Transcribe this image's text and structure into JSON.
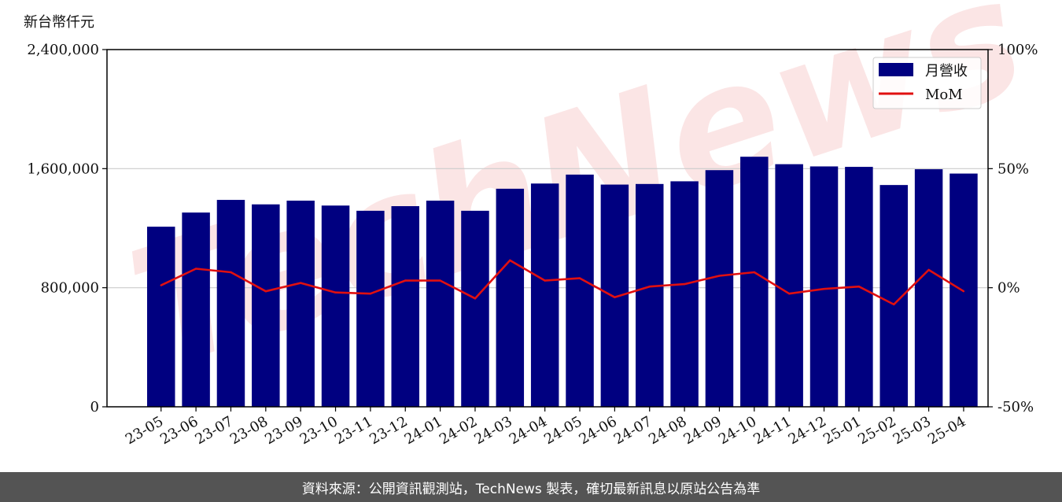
{
  "colors": {
    "bar": "#000080",
    "line": "#e01010",
    "grid": "#cccccc",
    "watermark": "#f7d0d0",
    "footer_bg": "#545454"
  },
  "chart_data": {
    "type": "bar",
    "unit_label": "新台幣仟元",
    "categories": [
      "23-05",
      "23-06",
      "23-07",
      "23-08",
      "23-09",
      "23-10",
      "23-11",
      "23-12",
      "24-01",
      "24-02",
      "24-03",
      "24-04",
      "24-05",
      "24-06",
      "24-07",
      "24-08",
      "24-09",
      "24-10",
      "24-11",
      "24-12",
      "25-01",
      "25-02",
      "25-03",
      "25-04"
    ],
    "series": [
      {
        "name": "月營收",
        "type": "bar",
        "axis": "left",
        "values": [
          1210000,
          1305000,
          1390000,
          1360000,
          1385000,
          1352000,
          1317000,
          1348000,
          1385000,
          1317000,
          1465000,
          1500000,
          1560000,
          1493000,
          1497000,
          1515000,
          1590000,
          1680000,
          1630000,
          1615000,
          1612000,
          1490000,
          1596000,
          1567000
        ]
      },
      {
        "name": "MoM",
        "type": "line",
        "axis": "right",
        "values": [
          1.0,
          8.0,
          6.5,
          -1.5,
          2.0,
          -2.0,
          -2.5,
          3.0,
          3.0,
          -4.5,
          11.5,
          3.0,
          4.0,
          -4.0,
          0.5,
          1.5,
          5.0,
          6.5,
          -2.5,
          -0.5,
          0.5,
          -7.0,
          7.5,
          -1.5
        ]
      }
    ],
    "y_left": {
      "ylim": [
        0,
        2400000
      ],
      "ticks": [
        "0",
        "800,000",
        "1,600,000",
        "2,400,000"
      ],
      "tick_values": [
        0,
        800000,
        1600000,
        2400000
      ]
    },
    "y_right": {
      "ylim": [
        -50,
        100
      ],
      "ticks": [
        "-50%",
        "0%",
        "50%",
        "100%"
      ],
      "tick_values": [
        -50,
        0,
        50,
        100
      ]
    },
    "grid": "horizontal",
    "legend": {
      "placement": "top-right",
      "entries": [
        "月營收",
        "MoM"
      ]
    },
    "watermark": "TechNews"
  },
  "footer": {
    "text": "資料來源：公開資訊觀測站，TechNews 製表，確切最新訊息以原站公告為準"
  }
}
